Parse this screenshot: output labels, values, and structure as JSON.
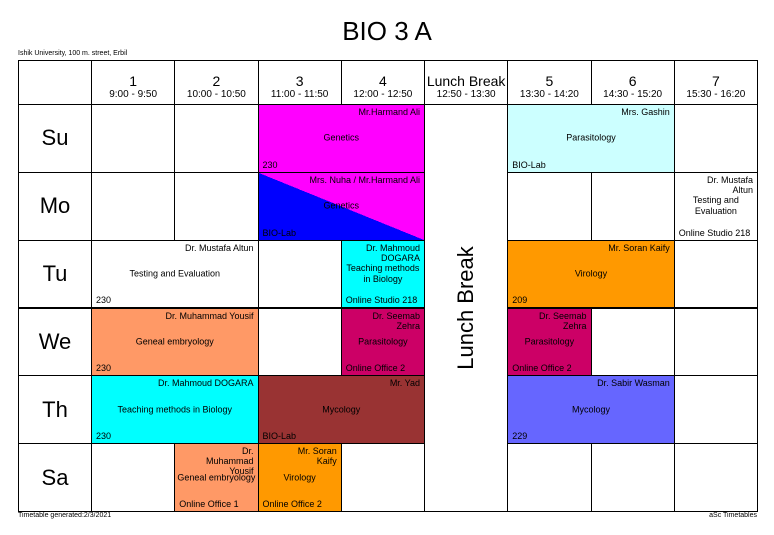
{
  "header": {
    "title": "BIO 3 A",
    "subtitle": "Ishik University, 100 m. street, Erbil"
  },
  "columns": [
    {
      "label": "1",
      "time": "9:00 - 9:50"
    },
    {
      "label": "2",
      "time": "10:00 - 10:50"
    },
    {
      "label": "3",
      "time": "11:00 - 11:50"
    },
    {
      "label": "4",
      "time": "12:00 - 12:50"
    },
    {
      "label": "Lunch Break",
      "time": "12:50 - 13:30",
      "lunch": true
    },
    {
      "label": "5",
      "time": "13:30 - 14:20"
    },
    {
      "label": "6",
      "time": "14:30 - 15:20"
    },
    {
      "label": "7",
      "time": "15:30 - 16:20"
    }
  ],
  "days": [
    "Su",
    "Mo",
    "Tu",
    "We",
    "Th",
    "Sa"
  ],
  "lessons": [
    {
      "day": "Su",
      "periods": [
        "3",
        "4"
      ],
      "teacher": "Mr.Harmand Ali",
      "subject": "Genetics",
      "room": "230",
      "colors": [
        "#ff00ff"
      ]
    },
    {
      "day": "Su",
      "periods": [
        "5",
        "6"
      ],
      "teacher": "Mrs. Gashin",
      "subject": "Parasitology",
      "room": "BIO-Lab",
      "colors": [
        "#ccffff"
      ]
    },
    {
      "day": "Mo",
      "periods": [
        "3",
        "4"
      ],
      "teacher": "Mrs. Nuha / Mr.Harmand Ali",
      "subject": "Genetics",
      "room": "BIO-Lab",
      "colors": [
        "#ff00ff",
        "#0000ff"
      ]
    },
    {
      "day": "Mo",
      "periods": [
        "7"
      ],
      "teacher": "Dr. Mustafa Altun",
      "subject": "Testing and Evaluation",
      "room": "Online Studio 218",
      "colors": [
        "#ffffff"
      ]
    },
    {
      "day": "Tu",
      "periods": [
        "1",
        "2"
      ],
      "teacher": "Dr. Mustafa Altun",
      "subject": "Testing and Evaluation",
      "room": "230",
      "colors": [
        "#ffffff"
      ]
    },
    {
      "day": "Tu",
      "periods": [
        "4"
      ],
      "teacher": "Dr. Mahmoud DOGARA",
      "subject": "Teaching methods in Biology",
      "room": "Online Studio 218",
      "colors": [
        "#00ffff"
      ]
    },
    {
      "day": "Tu",
      "periods": [
        "5",
        "6"
      ],
      "teacher": "Mr. Soran Kaify",
      "subject": "Virology",
      "room": "209",
      "colors": [
        "#ff9900"
      ]
    },
    {
      "day": "We",
      "periods": [
        "1",
        "2"
      ],
      "teacher": "Dr. Muhammad Yousif",
      "subject": "Geneal embryology",
      "room": "230",
      "colors": [
        "#ff9966"
      ]
    },
    {
      "day": "We",
      "periods": [
        "4"
      ],
      "teacher": "Dr. Seemab Zehra",
      "subject": "Parasitology",
      "room": "Online Office 2",
      "colors": [
        "#cc0066"
      ]
    },
    {
      "day": "We",
      "periods": [
        "5"
      ],
      "teacher": "Dr. Seemab Zehra",
      "subject": "Parasitology",
      "room": "Online Office 2",
      "colors": [
        "#cc0066"
      ]
    },
    {
      "day": "Th",
      "periods": [
        "1",
        "2"
      ],
      "teacher": "Dr. Mahmoud DOGARA",
      "subject": "Teaching methods in Biology",
      "room": "230",
      "colors": [
        "#00ffff"
      ]
    },
    {
      "day": "Th",
      "periods": [
        "3",
        "4"
      ],
      "teacher": "Mr. Yad",
      "subject": "Mycology",
      "room": "BIO-Lab",
      "colors": [
        "#993333"
      ]
    },
    {
      "day": "Th",
      "periods": [
        "5",
        "6"
      ],
      "teacher": "Dr. Sabir Wasman",
      "subject": "Mycology",
      "room": "229",
      "colors": [
        "#6666ff"
      ]
    },
    {
      "day": "Sa",
      "periods": [
        "2"
      ],
      "teacher": "Dr. Muhammad Yousif",
      "subject": "Geneal embryology",
      "room": "Online Office 1",
      "colors": [
        "#ff9966"
      ]
    },
    {
      "day": "Sa",
      "periods": [
        "3"
      ],
      "teacher": "Mr. Soran Kaify",
      "subject": "Virology",
      "room": "Online Office 2",
      "colors": [
        "#ff9900"
      ]
    }
  ],
  "footer": {
    "left": "Timetable generated:2/3/2021",
    "right": "aSc Timetables"
  }
}
